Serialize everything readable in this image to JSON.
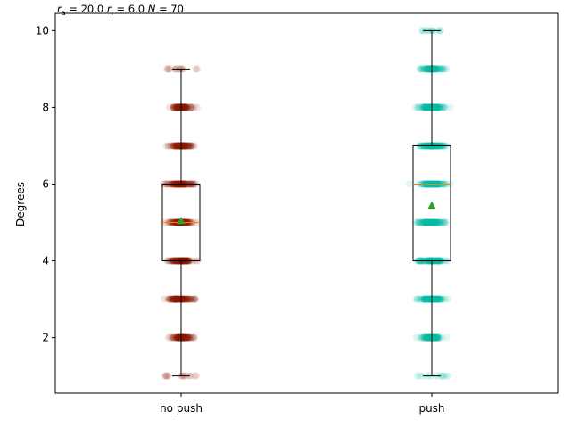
{
  "chart_data": {
    "type": "box",
    "title": "r_a = 20.0  r_i = 6.0  N = 70",
    "title_parts": {
      "ra_label": "r",
      "ra_sub": "a",
      "ra_value": " = 20.0 ",
      "ri_label": "r",
      "ri_sub": "i",
      "ri_value": " = 6.0 ",
      "n_label": "N",
      "n_value": " = 70"
    },
    "xlabel": "",
    "ylabel": "Degrees",
    "ylim": [
      0.55,
      10.45
    ],
    "yticks": [
      2,
      4,
      6,
      8,
      10
    ],
    "categories": [
      "no push",
      "push"
    ],
    "grid": false,
    "series": [
      {
        "category": "no push",
        "color": "#8b1a00",
        "mean_color": "#2ca02c",
        "median_color": "#ff7f0e",
        "min": 1,
        "q1": 4,
        "median": 5,
        "q3": 6,
        "max": 9,
        "mean": 5.05,
        "degree_levels": [
          1,
          2,
          3,
          4,
          5,
          6,
          7,
          8,
          9
        ],
        "level_spread": [
          0.13,
          0.17,
          0.21,
          0.18,
          0.19,
          0.2,
          0.17,
          0.15,
          0.13
        ],
        "sparse_levels": [
          1,
          9
        ]
      },
      {
        "category": "push",
        "color": "#00bfa5",
        "mean_color": "#2ca02c",
        "median_color": "#ff7f0e",
        "min": 1,
        "q1": 4,
        "median": 6,
        "q3": 7,
        "max": 10,
        "mean": 5.45,
        "degree_levels": [
          1,
          2,
          3,
          4,
          5,
          6,
          7,
          8,
          9,
          10
        ],
        "level_spread": [
          0.15,
          0.15,
          0.18,
          0.19,
          0.21,
          0.2,
          0.19,
          0.19,
          0.16,
          0.08
        ],
        "sparse_levels": [
          1,
          10
        ]
      }
    ]
  }
}
